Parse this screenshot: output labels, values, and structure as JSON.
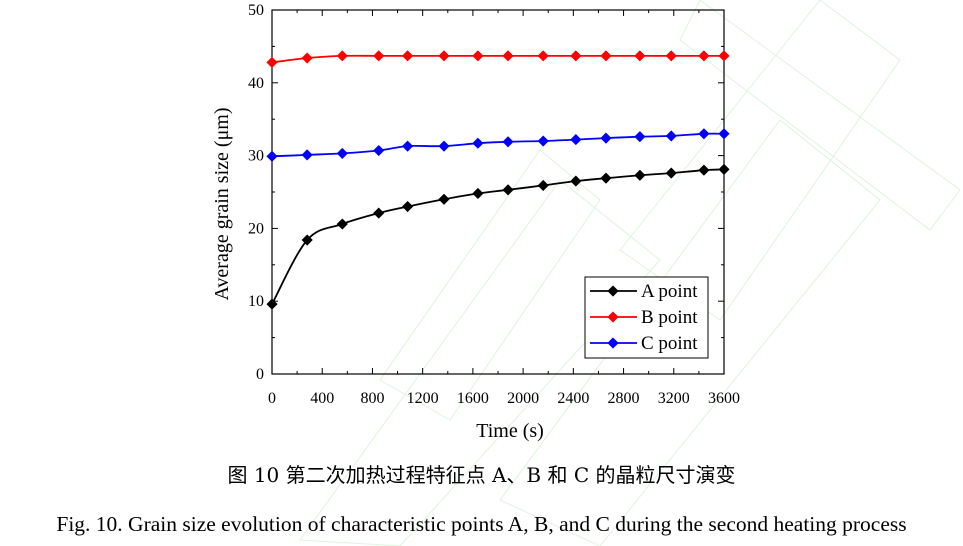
{
  "chart_data": {
    "type": "line",
    "title": "",
    "xlabel": "Time (s)",
    "ylabel": "Average grain size (μm)",
    "xlim": [
      0,
      3600
    ],
    "ylim": [
      0,
      50
    ],
    "xticks": [
      0,
      400,
      800,
      1200,
      1600,
      2000,
      2400,
      2800,
      3200,
      3600
    ],
    "yticks": [
      0,
      10,
      20,
      30,
      40,
      50
    ],
    "legend_position": "bottom-right",
    "grid": false,
    "x": [
      0,
      280,
      560,
      850,
      1080,
      1370,
      1640,
      1880,
      2160,
      2420,
      2660,
      2930,
      3180,
      3440,
      3600
    ],
    "series": [
      {
        "name": "A point",
        "color": "#000000",
        "values": [
          9.6,
          18.4,
          20.6,
          22.1,
          23.0,
          24.0,
          24.8,
          25.3,
          25.9,
          26.5,
          26.9,
          27.3,
          27.6,
          28.0,
          28.1
        ]
      },
      {
        "name": "B point",
        "color": "#ff0000",
        "values": [
          42.8,
          43.4,
          43.7,
          43.7,
          43.7,
          43.7,
          43.7,
          43.7,
          43.7,
          43.7,
          43.7,
          43.7,
          43.7,
          43.7,
          43.7
        ]
      },
      {
        "name": "C point",
        "color": "#0000ff",
        "values": [
          29.9,
          30.1,
          30.3,
          30.7,
          31.3,
          31.3,
          31.7,
          31.9,
          32.0,
          32.2,
          32.4,
          32.6,
          32.7,
          33.0,
          33.0
        ]
      }
    ]
  },
  "captions": {
    "chinese": "图 10  第二次加热过程特征点 A、B 和 C 的晶粒尺寸演变",
    "english": "Fig. 10. Grain size evolution of characteristic points A, B, and C during the second heating process"
  }
}
